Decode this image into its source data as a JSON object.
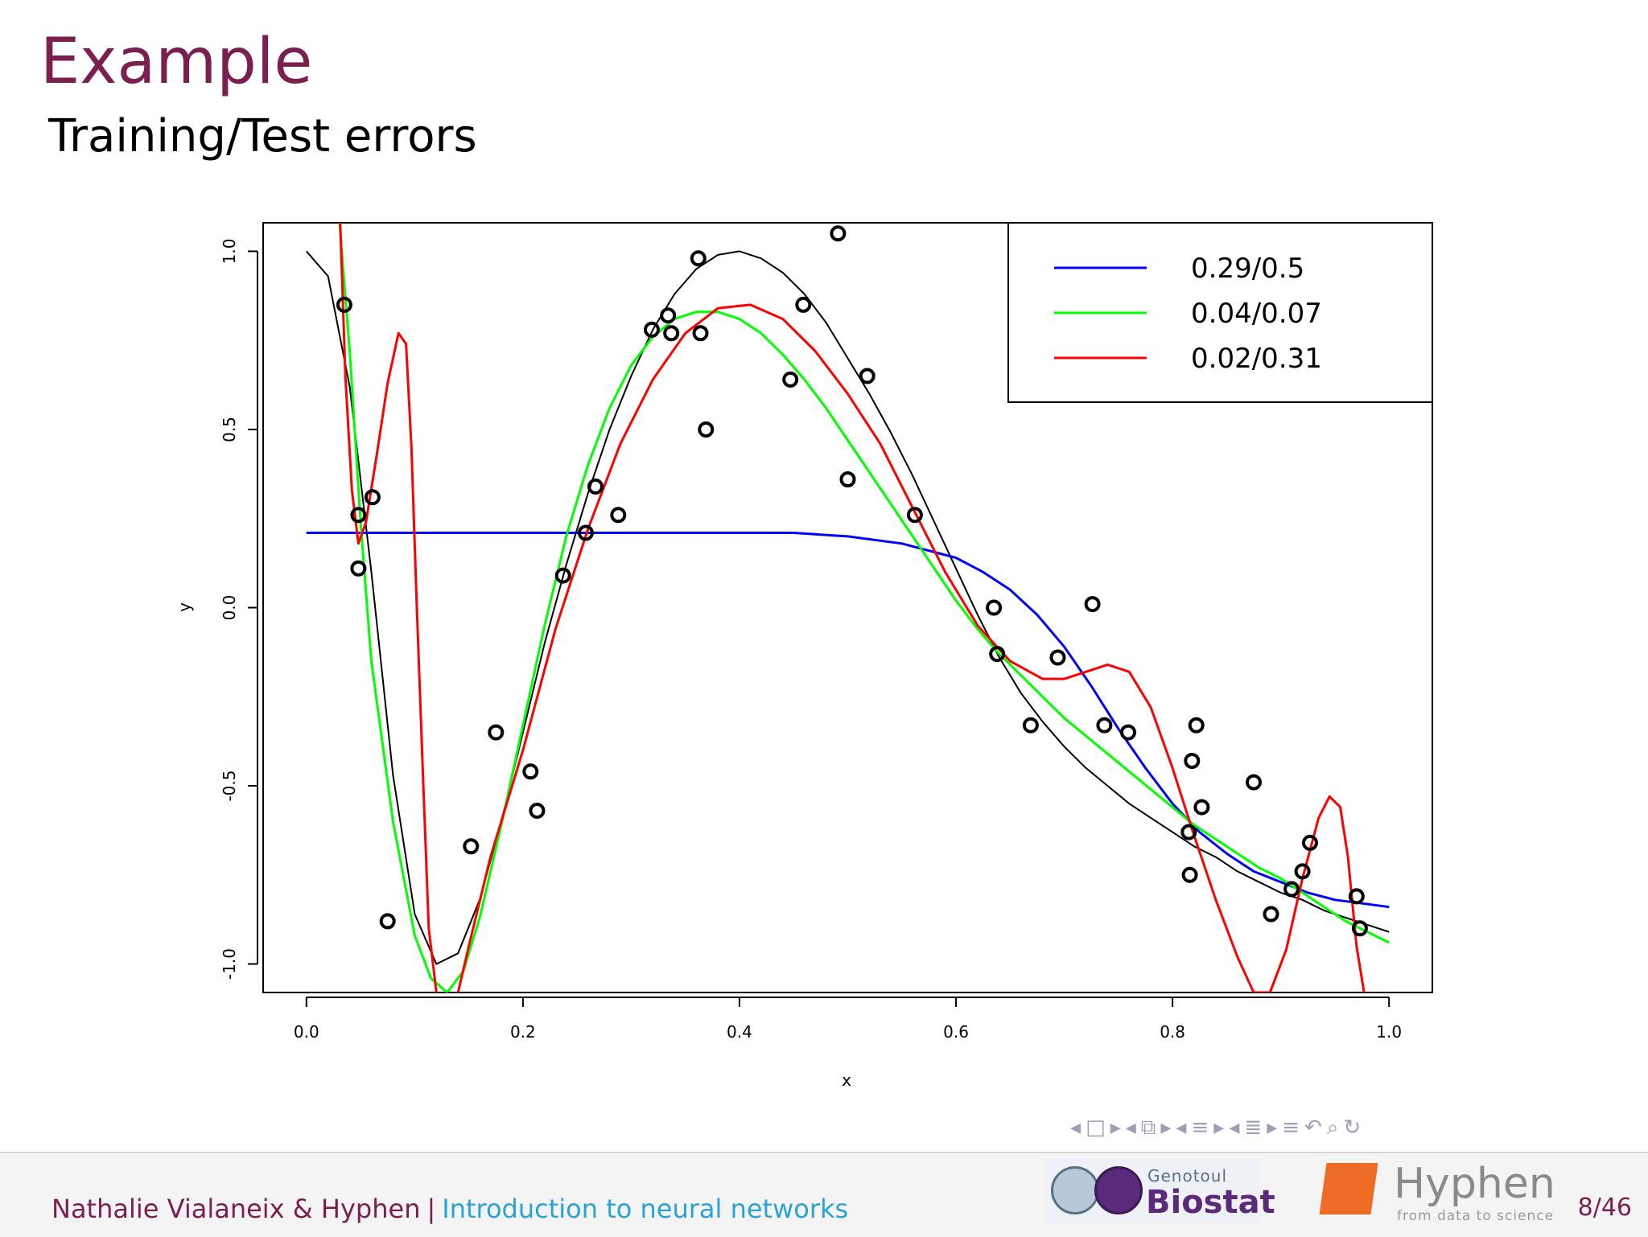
{
  "slide": {
    "title": "Example",
    "subtitle": "Training/Test errors"
  },
  "footer": {
    "authors": "Nathalie Vialaneix & Hyphen",
    "separator": "|",
    "course": "Introduction to neural networks",
    "page": "8/46",
    "logo_biostat_small": "Genotoul",
    "logo_biostat_big": "Biostat",
    "logo_hyphen_name": "Hyphen",
    "logo_hyphen_tag": "from data to science"
  },
  "nav_icons": [
    "nav-left-arrow",
    "nav-frame-icon",
    "nav-right-arrow",
    "nav-left-arrow",
    "nav-subsection-icon",
    "nav-right-arrow",
    "nav-left-arrow",
    "nav-section-icon",
    "nav-right-arrow",
    "nav-left-arrow",
    "nav-sections-icon",
    "nav-right-arrow",
    "nav-outline-icon",
    "undo-icon",
    "search-icon",
    "refresh-icon"
  ],
  "chart_data": {
    "type": "line",
    "title": "",
    "xlabel": "x",
    "ylabel": "y",
    "xlim": [
      -0.04,
      1.04
    ],
    "ylim": [
      -1.08,
      1.08
    ],
    "x_ticks": [
      "0.0",
      "0.2",
      "0.4",
      "0.6",
      "0.8",
      "1.0"
    ],
    "y_ticks": [
      "-1.0",
      "-0.5",
      "0.0",
      "0.5",
      "1.0"
    ],
    "grid": false,
    "legend_position": "top-right",
    "points": [
      [
        0.035,
        0.85
      ],
      [
        0.048,
        0.26
      ],
      [
        0.048,
        0.11
      ],
      [
        0.061,
        0.31
      ],
      [
        0.075,
        -0.88
      ],
      [
        0.152,
        -0.67
      ],
      [
        0.175,
        -0.35
      ],
      [
        0.207,
        -0.46
      ],
      [
        0.213,
        -0.57
      ],
      [
        0.237,
        0.09
      ],
      [
        0.258,
        0.21
      ],
      [
        0.267,
        0.34
      ],
      [
        0.288,
        0.26
      ],
      [
        0.319,
        0.78
      ],
      [
        0.334,
        0.82
      ],
      [
        0.337,
        0.77
      ],
      [
        0.362,
        0.98
      ],
      [
        0.364,
        0.77
      ],
      [
        0.369,
        0.5
      ],
      [
        0.447,
        0.64
      ],
      [
        0.459,
        0.85
      ],
      [
        0.491,
        1.05
      ],
      [
        0.5,
        0.36
      ],
      [
        0.518,
        0.65
      ],
      [
        0.562,
        0.26
      ],
      [
        0.635,
        0.0
      ],
      [
        0.638,
        -0.13
      ],
      [
        0.669,
        -0.33
      ],
      [
        0.694,
        -0.14
      ],
      [
        0.726,
        0.01
      ],
      [
        0.737,
        -0.33
      ],
      [
        0.759,
        -0.35
      ],
      [
        0.815,
        -0.63
      ],
      [
        0.816,
        -0.75
      ],
      [
        0.818,
        -0.43
      ],
      [
        0.822,
        -0.33
      ],
      [
        0.827,
        -0.56
      ],
      [
        0.875,
        -0.49
      ],
      [
        0.891,
        -0.86
      ],
      [
        0.91,
        -0.79
      ],
      [
        0.92,
        -0.74
      ],
      [
        0.927,
        -0.66
      ],
      [
        0.97,
        -0.81
      ],
      [
        0.973,
        -0.9
      ]
    ],
    "series": [
      {
        "name": "",
        "color": "#000000",
        "x": [
          0.0,
          0.02,
          0.04,
          0.06,
          0.08,
          0.1,
          0.12,
          0.14,
          0.16,
          0.18,
          0.2,
          0.22,
          0.24,
          0.26,
          0.28,
          0.3,
          0.32,
          0.34,
          0.36,
          0.38,
          0.4,
          0.42,
          0.44,
          0.46,
          0.48,
          0.5,
          0.52,
          0.54,
          0.56,
          0.58,
          0.6,
          0.62,
          0.64,
          0.66,
          0.68,
          0.7,
          0.72,
          0.74,
          0.76,
          0.78,
          0.8,
          0.82,
          0.84,
          0.86,
          0.88,
          0.9,
          0.92,
          0.94,
          0.96,
          0.98,
          1.0
        ],
        "y": [
          1.0,
          0.93,
          0.62,
          0.1,
          -0.47,
          -0.86,
          -1.0,
          -0.97,
          -0.82,
          -0.6,
          -0.35,
          -0.1,
          0.12,
          0.32,
          0.5,
          0.65,
          0.78,
          0.88,
          0.95,
          0.99,
          1.0,
          0.98,
          0.94,
          0.88,
          0.8,
          0.7,
          0.6,
          0.49,
          0.37,
          0.24,
          0.11,
          -0.02,
          -0.14,
          -0.24,
          -0.32,
          -0.39,
          -0.45,
          -0.5,
          -0.55,
          -0.59,
          -0.63,
          -0.67,
          -0.7,
          -0.74,
          -0.77,
          -0.8,
          -0.82,
          -0.85,
          -0.87,
          -0.89,
          -0.91
        ]
      },
      {
        "name": "0.29/0.5",
        "color": "#0000ff",
        "x": [
          0.0,
          0.1,
          0.2,
          0.3,
          0.4,
          0.45,
          0.5,
          0.55,
          0.6,
          0.625,
          0.65,
          0.675,
          0.7,
          0.725,
          0.75,
          0.775,
          0.8,
          0.825,
          0.85,
          0.875,
          0.9,
          0.925,
          0.95,
          0.975,
          1.0
        ],
        "y": [
          0.21,
          0.21,
          0.21,
          0.21,
          0.21,
          0.21,
          0.2,
          0.18,
          0.14,
          0.1,
          0.05,
          -0.02,
          -0.11,
          -0.22,
          -0.34,
          -0.45,
          -0.55,
          -0.63,
          -0.69,
          -0.74,
          -0.77,
          -0.8,
          -0.82,
          -0.83,
          -0.84
        ]
      },
      {
        "name": "0.04/0.07",
        "color": "#00ff00",
        "x": [
          0.03,
          0.04,
          0.05,
          0.06,
          0.08,
          0.1,
          0.115,
          0.13,
          0.145,
          0.16,
          0.18,
          0.2,
          0.22,
          0.24,
          0.26,
          0.28,
          0.3,
          0.32,
          0.34,
          0.36,
          0.38,
          0.4,
          0.42,
          0.44,
          0.46,
          0.48,
          0.5,
          0.52,
          0.54,
          0.56,
          0.58,
          0.6,
          0.62,
          0.64,
          0.66,
          0.68,
          0.7,
          0.72,
          0.74,
          0.76,
          0.78,
          0.8,
          0.82,
          0.84,
          0.86,
          0.88,
          0.9,
          0.92,
          0.94,
          0.96,
          0.98,
          1.0
        ],
        "y": [
          1.1,
          0.72,
          0.24,
          -0.15,
          -0.6,
          -0.92,
          -1.04,
          -1.08,
          -1.02,
          -0.87,
          -0.61,
          -0.33,
          -0.05,
          0.2,
          0.4,
          0.56,
          0.68,
          0.76,
          0.81,
          0.83,
          0.83,
          0.81,
          0.77,
          0.71,
          0.64,
          0.56,
          0.47,
          0.38,
          0.29,
          0.2,
          0.11,
          0.02,
          -0.06,
          -0.13,
          -0.19,
          -0.25,
          -0.31,
          -0.36,
          -0.41,
          -0.46,
          -0.51,
          -0.56,
          -0.61,
          -0.65,
          -0.69,
          -0.73,
          -0.76,
          -0.8,
          -0.84,
          -0.88,
          -0.91,
          -0.94
        ]
      },
      {
        "name": "0.02/0.31",
        "color": "#ff0000",
        "x": [
          0.031,
          0.036,
          0.042,
          0.048,
          0.055,
          0.065,
          0.075,
          0.085,
          0.092,
          0.097,
          0.102,
          0.108,
          0.113,
          0.12,
          0.13,
          0.14,
          0.15,
          0.17,
          0.2,
          0.23,
          0.26,
          0.29,
          0.32,
          0.35,
          0.38,
          0.41,
          0.44,
          0.47,
          0.5,
          0.53,
          0.56,
          0.59,
          0.62,
          0.65,
          0.68,
          0.7,
          0.72,
          0.74,
          0.76,
          0.78,
          0.8,
          0.82,
          0.84,
          0.86,
          0.875,
          0.89,
          0.905,
          0.92,
          0.935,
          0.945,
          0.955,
          0.962,
          0.97,
          0.978
        ],
        "y": [
          1.1,
          0.65,
          0.33,
          0.18,
          0.24,
          0.43,
          0.63,
          0.77,
          0.74,
          0.45,
          0.0,
          -0.5,
          -0.9,
          -1.08,
          -1.12,
          -1.08,
          -0.95,
          -0.7,
          -0.4,
          -0.06,
          0.22,
          0.46,
          0.64,
          0.77,
          0.84,
          0.85,
          0.81,
          0.72,
          0.6,
          0.46,
          0.28,
          0.1,
          -0.05,
          -0.15,
          -0.2,
          -0.2,
          -0.18,
          -0.16,
          -0.18,
          -0.28,
          -0.45,
          -0.64,
          -0.82,
          -0.98,
          -1.08,
          -1.08,
          -0.96,
          -0.76,
          -0.59,
          -0.53,
          -0.56,
          -0.7,
          -0.95,
          -1.1
        ]
      }
    ]
  }
}
